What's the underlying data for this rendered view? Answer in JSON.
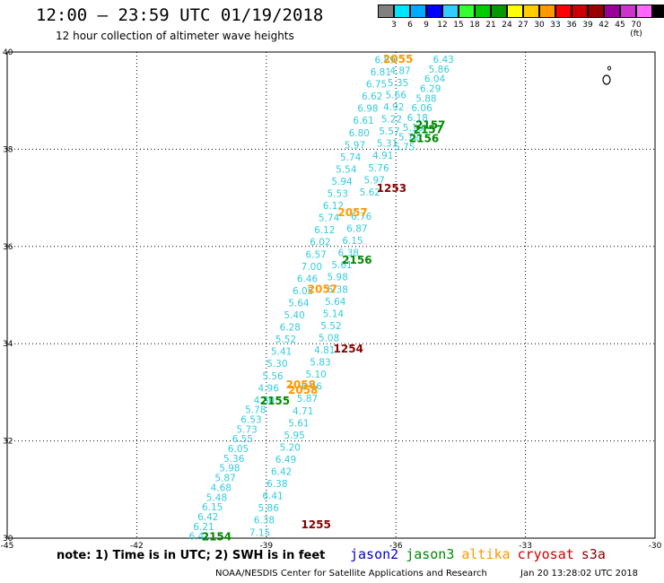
{
  "title": "12:00 – 23:59 UTC 01/19/2018",
  "subtitle": "12 hour collection of altimeter wave heights",
  "scale": {
    "labels": [
      "3",
      "6",
      "9",
      "12",
      "15",
      "18",
      "21",
      "24",
      "27",
      "30",
      "33",
      "36",
      "39",
      "42",
      "45",
      "70 (ft)"
    ],
    "colors": [
      "#808080",
      "#00e5ff",
      "#00aaff",
      "#0000ff",
      "#33ccff",
      "#33ff33",
      "#00cc00",
      "#009900",
      "#ffff00",
      "#ffcc00",
      "#ff9900",
      "#ff0000",
      "#cc0000",
      "#990000",
      "#990099",
      "#cc33cc",
      "#ff66ff",
      "#000000"
    ]
  },
  "axes": {
    "x_ticks": [
      "-45",
      "-42",
      "-39",
      "-36",
      "-33",
      "-30"
    ],
    "y_ticks": [
      "40",
      "38",
      "36",
      "34",
      "32",
      "30"
    ]
  },
  "chart_data": {
    "type": "scatter",
    "xlim": [
      -45,
      -30
    ],
    "ylim": [
      30,
      40
    ],
    "grid": true,
    "tracks": [
      {
        "satellite": "jason2",
        "color": "#33ccdd",
        "labels": [
          {
            "x": -36.25,
            "y": 39.77,
            "text": "6.89"
          },
          {
            "x": -36.35,
            "y": 39.52,
            "text": "6.81"
          },
          {
            "x": -36.45,
            "y": 39.27,
            "text": "6.75"
          },
          {
            "x": -36.55,
            "y": 39.02,
            "text": "6.62"
          },
          {
            "x": -36.65,
            "y": 38.77,
            "text": "6.98"
          },
          {
            "x": -36.75,
            "y": 38.52,
            "text": "6.61"
          },
          {
            "x": -36.85,
            "y": 38.27,
            "text": "6.80"
          },
          {
            "x": -36.95,
            "y": 38.02,
            "text": "5.97"
          },
          {
            "x": -37.05,
            "y": 37.77,
            "text": "5.74"
          },
          {
            "x": -37.15,
            "y": 37.52,
            "text": "5.54"
          },
          {
            "x": -37.25,
            "y": 37.27,
            "text": "5.94"
          },
          {
            "x": -37.35,
            "y": 37.02,
            "text": "5.53"
          },
          {
            "x": -37.45,
            "y": 36.77,
            "text": "6.12"
          },
          {
            "x": -37.55,
            "y": 36.52,
            "text": "5.74"
          },
          {
            "x": -37.65,
            "y": 36.27,
            "text": "6.12"
          },
          {
            "x": -37.75,
            "y": 36.02,
            "text": "6.02"
          },
          {
            "x": -37.85,
            "y": 35.77,
            "text": "6.57"
          },
          {
            "x": -37.95,
            "y": 35.52,
            "text": "7.00"
          },
          {
            "x": -38.05,
            "y": 35.27,
            "text": "6.46"
          },
          {
            "x": -38.15,
            "y": 35.02,
            "text": "6.05"
          },
          {
            "x": -38.25,
            "y": 34.77,
            "text": "5.64"
          },
          {
            "x": -38.35,
            "y": 34.52,
            "text": "5.40"
          },
          {
            "x": -38.45,
            "y": 34.27,
            "text": "6.28"
          },
          {
            "x": -38.55,
            "y": 34.02,
            "text": "5.52"
          },
          {
            "x": -38.65,
            "y": 33.77,
            "text": "5.41"
          },
          {
            "x": -38.75,
            "y": 33.52,
            "text": "5.30"
          },
          {
            "x": -38.85,
            "y": 33.27,
            "text": "5.56"
          },
          {
            "x": -38.95,
            "y": 33.02,
            "text": "4.96"
          },
          {
            "x": -39.05,
            "y": 32.77,
            "text": "4.80"
          },
          {
            "x": -39.25,
            "y": 32.57,
            "text": "5.78"
          },
          {
            "x": -39.35,
            "y": 32.37,
            "text": "6.53"
          },
          {
            "x": -39.45,
            "y": 32.17,
            "text": "5.73"
          },
          {
            "x": -39.55,
            "y": 31.97,
            "text": "6.55"
          },
          {
            "x": -39.65,
            "y": 31.77,
            "text": "6.05"
          },
          {
            "x": -39.75,
            "y": 31.57,
            "text": "5.36"
          },
          {
            "x": -39.85,
            "y": 31.37,
            "text": "5.98"
          },
          {
            "x": -39.95,
            "y": 31.17,
            "text": "5.87"
          },
          {
            "x": -40.05,
            "y": 30.97,
            "text": "4.68"
          },
          {
            "x": -40.15,
            "y": 30.77,
            "text": "5.48"
          },
          {
            "x": -40.25,
            "y": 30.57,
            "text": "6.15"
          },
          {
            "x": -40.35,
            "y": 30.37,
            "text": "6.42"
          },
          {
            "x": -40.45,
            "y": 30.17,
            "text": "6.21"
          },
          {
            "x": -40.55,
            "y": 29.97,
            "text": "6.41"
          }
        ]
      },
      {
        "satellite": "jason2",
        "color": "#33ccdd",
        "labels": [
          {
            "x": -35.9,
            "y": 39.55,
            "text": "4.87"
          },
          {
            "x": -35.95,
            "y": 39.3,
            "text": "5.35"
          },
          {
            "x": -36.0,
            "y": 39.05,
            "text": "5.66"
          },
          {
            "x": -36.05,
            "y": 38.8,
            "text": "4.92"
          },
          {
            "x": -36.1,
            "y": 38.55,
            "text": "5.22"
          },
          {
            "x": -36.15,
            "y": 38.3,
            "text": "5.57"
          },
          {
            "x": -36.2,
            "y": 38.05,
            "text": "5.31"
          },
          {
            "x": -36.3,
            "y": 37.8,
            "text": "4.91"
          },
          {
            "x": -36.4,
            "y": 37.55,
            "text": "5.76"
          },
          {
            "x": -36.5,
            "y": 37.3,
            "text": "5.97"
          },
          {
            "x": -36.6,
            "y": 37.05,
            "text": "5.62"
          },
          {
            "x": -36.8,
            "y": 36.55,
            "text": "6.76"
          },
          {
            "x": -36.9,
            "y": 36.3,
            "text": "6.87"
          },
          {
            "x": -37.0,
            "y": 36.05,
            "text": "6.15"
          },
          {
            "x": -37.1,
            "y": 35.8,
            "text": "6.38"
          },
          {
            "x": -37.25,
            "y": 35.55,
            "text": "5.61"
          },
          {
            "x": -37.35,
            "y": 35.3,
            "text": "5.98"
          },
          {
            "x": -37.35,
            "y": 35.05,
            "text": "6.38"
          },
          {
            "x": -37.4,
            "y": 34.8,
            "text": "5.64"
          },
          {
            "x": -37.45,
            "y": 34.55,
            "text": "5.14"
          },
          {
            "x": -37.5,
            "y": 34.3,
            "text": "5.52"
          },
          {
            "x": -37.55,
            "y": 34.05,
            "text": "5.08"
          },
          {
            "x": -37.65,
            "y": 33.8,
            "text": "4.81"
          },
          {
            "x": -37.75,
            "y": 33.55,
            "text": "5.83"
          },
          {
            "x": -37.85,
            "y": 33.3,
            "text": "5.10"
          },
          {
            "x": -37.95,
            "y": 33.05,
            "text": "6.46"
          },
          {
            "x": -38.05,
            "y": 32.8,
            "text": "5.87"
          },
          {
            "x": -38.15,
            "y": 32.55,
            "text": "4.71"
          },
          {
            "x": -38.25,
            "y": 32.3,
            "text": "5.61"
          },
          {
            "x": -38.35,
            "y": 32.05,
            "text": "5.95"
          },
          {
            "x": -38.45,
            "y": 31.8,
            "text": "5.20"
          },
          {
            "x": -38.55,
            "y": 31.55,
            "text": "6.49"
          },
          {
            "x": -38.65,
            "y": 31.3,
            "text": "6.42"
          },
          {
            "x": -38.75,
            "y": 31.05,
            "text": "6.38"
          },
          {
            "x": -38.85,
            "y": 30.8,
            "text": "6.41"
          },
          {
            "x": -38.95,
            "y": 30.55,
            "text": "5.86"
          },
          {
            "x": -39.05,
            "y": 30.3,
            "text": "6.38"
          },
          {
            "x": -39.15,
            "y": 30.05,
            "text": "7.15"
          }
        ]
      },
      {
        "satellite": "jason2",
        "color": "#33ccdd",
        "labels": [
          {
            "x": -34.9,
            "y": 39.78,
            "text": "6.43"
          },
          {
            "x": -35.0,
            "y": 39.58,
            "text": "5.86"
          },
          {
            "x": -35.1,
            "y": 39.38,
            "text": "6.04"
          },
          {
            "x": -35.2,
            "y": 39.18,
            "text": "6.29"
          },
          {
            "x": -35.3,
            "y": 38.98,
            "text": "5.88"
          },
          {
            "x": -35.4,
            "y": 38.78,
            "text": "6.06"
          },
          {
            "x": -35.5,
            "y": 38.58,
            "text": "6.18"
          },
          {
            "x": -35.6,
            "y": 38.38,
            "text": "5.16"
          },
          {
            "x": -35.7,
            "y": 38.18,
            "text": "5.72"
          },
          {
            "x": -35.8,
            "y": 37.98,
            "text": "5.75"
          }
        ]
      }
    ],
    "pass_labels": [
      {
        "text": "2055",
        "satellite": "altika",
        "color": "#ff9900",
        "x": -35.95,
        "y": 39.78
      },
      {
        "text": "2157",
        "satellite": "jason3",
        "color": "#008800",
        "x": -35.2,
        "y": 38.42
      },
      {
        "text": "2157",
        "satellite": "jason3",
        "color": "#008800",
        "x": -35.25,
        "y": 38.33
      },
      {
        "text": "2156",
        "satellite": "jason3",
        "color": "#008800",
        "x": -35.35,
        "y": 38.15
      },
      {
        "text": "1253",
        "satellite": "cryosat",
        "color": "#880000",
        "x": -36.1,
        "y": 37.12
      },
      {
        "text": "2057",
        "satellite": "altika",
        "color": "#ff9900",
        "x": -37.0,
        "y": 36.62
      },
      {
        "text": "2156",
        "satellite": "jason3",
        "color": "#008800",
        "x": -36.9,
        "y": 35.65
      },
      {
        "text": "2057",
        "satellite": "altika",
        "color": "#ff9900",
        "x": -37.7,
        "y": 35.05
      },
      {
        "text": "1254",
        "satellite": "cryosat",
        "color": "#880000",
        "x": -37.1,
        "y": 33.82
      },
      {
        "text": "2058",
        "satellite": "altika",
        "color": "#ff9900",
        "x": -38.2,
        "y": 33.08
      },
      {
        "text": "2058",
        "satellite": "altika",
        "color": "#ff9900",
        "x": -38.15,
        "y": 32.97
      },
      {
        "text": "2155",
        "satellite": "jason3",
        "color": "#008800",
        "x": -38.8,
        "y": 32.75
      },
      {
        "text": "1255",
        "satellite": "cryosat",
        "color": "#880000",
        "x": -37.85,
        "y": 30.2
      },
      {
        "text": "2154",
        "satellite": "jason3",
        "color": "#008800",
        "x": -40.15,
        "y": 29.95
      }
    ]
  },
  "legend": {
    "note": "note: 1) Time is in UTC; 2) SWH is in feet",
    "satellites": [
      {
        "name": "jason2",
        "color": "#0000cc"
      },
      {
        "name": "jason3",
        "color": "#008800"
      },
      {
        "name": "altika",
        "color": "#ff9900"
      },
      {
        "name": "cryosat",
        "color": "#cc0000"
      },
      {
        "name": "s3a",
        "color": "#880000"
      }
    ]
  },
  "footer": {
    "credit": "NOAA/NESDIS Center for Satellite Applications and Research",
    "timestamp": "Jan 20 13:28:02 UTC 2018"
  }
}
